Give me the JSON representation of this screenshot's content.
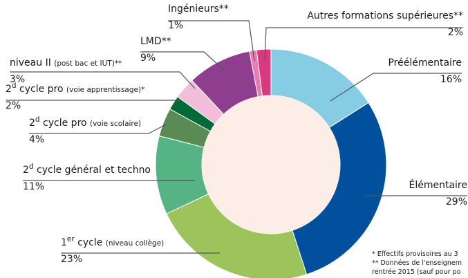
{
  "chart_data": {
    "type": "donut",
    "categories": [
      [
        {
          "text": "Préélémentaire"
        }
      ],
      [
        {
          "text": "Élémentaire"
        }
      ],
      [
        {
          "text": "1"
        },
        {
          "text": "er",
          "style": "sup"
        },
        {
          "text": " cycle "
        },
        {
          "text": "(niveau collège)",
          "style": "small"
        }
      ],
      [
        {
          "text": "2"
        },
        {
          "text": "d",
          "style": "sup"
        },
        {
          "text": " cycle général et techno"
        }
      ],
      [
        {
          "text": "2"
        },
        {
          "text": "d",
          "style": "sup"
        },
        {
          "text": " cycle pro "
        },
        {
          "text": "(voie scolaire)",
          "style": "small"
        }
      ],
      [
        {
          "text": "2"
        },
        {
          "text": "d",
          "style": "sup"
        },
        {
          "text": " cycle pro "
        },
        {
          "text": "(voie apprentissage)*",
          "style": "small"
        }
      ],
      [
        {
          "text": "niveau II "
        },
        {
          "text": "(post bac et IUT)**",
          "style": "small"
        }
      ],
      [
        {
          "text": "LMD**"
        }
      ],
      [
        {
          "text": "Ingénieurs**"
        }
      ],
      [
        {
          "text": "Autres formations supérieures**"
        }
      ]
    ],
    "values": [
      16,
      29,
      23,
      11,
      4,
      2,
      3,
      9,
      1,
      2
    ],
    "value_labels": [
      "16%",
      "29%",
      "23%",
      "11%",
      "4%",
      "2%",
      "3%",
      "9%",
      "1%",
      "2%"
    ],
    "colors": [
      "#86cde4",
      "#00509e",
      "#9cc45b",
      "#56b484",
      "#5b8b55",
      "#006b36",
      "#f1bdd9",
      "#8f3d8f",
      "#e97db1",
      "#d73b7e"
    ],
    "notes": [
      "* Effectifs  provisoires au 3",
      "** Données de l'enseignem",
      "rentrée 2015 (sauf pour po"
    ]
  }
}
